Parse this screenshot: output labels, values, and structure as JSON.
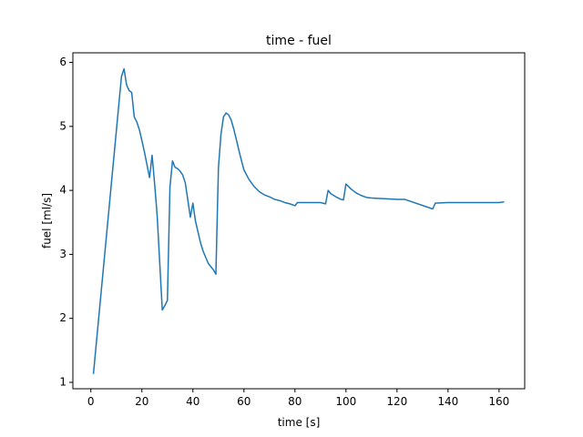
{
  "chart_data": {
    "type": "line",
    "title": "time - fuel",
    "xlabel": "time [s]",
    "ylabel": "fuel [ml/s]",
    "xlim": [
      -7.05,
      170.05
    ],
    "ylim": [
      0.9,
      6.15
    ],
    "xticks": [
      0,
      20,
      40,
      60,
      80,
      100,
      120,
      140,
      160
    ],
    "yticks": [
      1,
      2,
      3,
      4,
      5,
      6
    ],
    "grid": false,
    "legend": "none",
    "series": [
      {
        "color": "#1f77b4",
        "x": [
          1,
          12,
          13,
          14,
          15,
          16,
          17,
          18,
          19,
          20,
          21,
          22,
          23,
          24,
          25,
          26,
          28,
          29,
          30,
          31,
          32,
          33,
          34,
          35,
          36,
          37,
          38,
          39,
          40,
          41,
          42,
          43,
          44,
          46,
          48,
          49,
          50,
          51,
          52,
          53,
          54,
          55,
          56,
          57,
          58,
          59,
          60,
          62,
          64,
          66,
          68,
          70,
          72,
          74,
          76,
          78,
          80,
          81,
          82,
          84,
          86,
          88,
          90,
          92,
          93,
          94,
          96,
          98,
          99,
          100,
          102,
          104,
          106,
          108,
          110,
          115,
          120,
          123,
          134,
          135,
          140,
          145,
          150,
          155,
          160,
          162
        ],
        "y": [
          1.13,
          5.78,
          5.9,
          5.65,
          5.56,
          5.53,
          5.15,
          5.07,
          4.95,
          4.78,
          4.6,
          4.4,
          4.2,
          4.55,
          4.1,
          3.6,
          2.13,
          2.2,
          2.28,
          4.05,
          4.46,
          4.36,
          4.34,
          4.3,
          4.24,
          4.12,
          3.85,
          3.58,
          3.8,
          3.52,
          3.35,
          3.18,
          3.05,
          2.86,
          2.76,
          2.69,
          4.35,
          4.88,
          5.15,
          5.21,
          5.18,
          5.1,
          4.96,
          4.8,
          4.63,
          4.47,
          4.32,
          4.17,
          4.06,
          3.98,
          3.93,
          3.9,
          3.86,
          3.84,
          3.81,
          3.79,
          3.76,
          3.81,
          3.81,
          3.81,
          3.81,
          3.81,
          3.81,
          3.79,
          4.0,
          3.95,
          3.9,
          3.86,
          3.85,
          4.1,
          4.02,
          3.96,
          3.92,
          3.89,
          3.88,
          3.87,
          3.86,
          3.86,
          3.71,
          3.8,
          3.81,
          3.81,
          3.81,
          3.81,
          3.81,
          3.82
        ]
      }
    ]
  }
}
